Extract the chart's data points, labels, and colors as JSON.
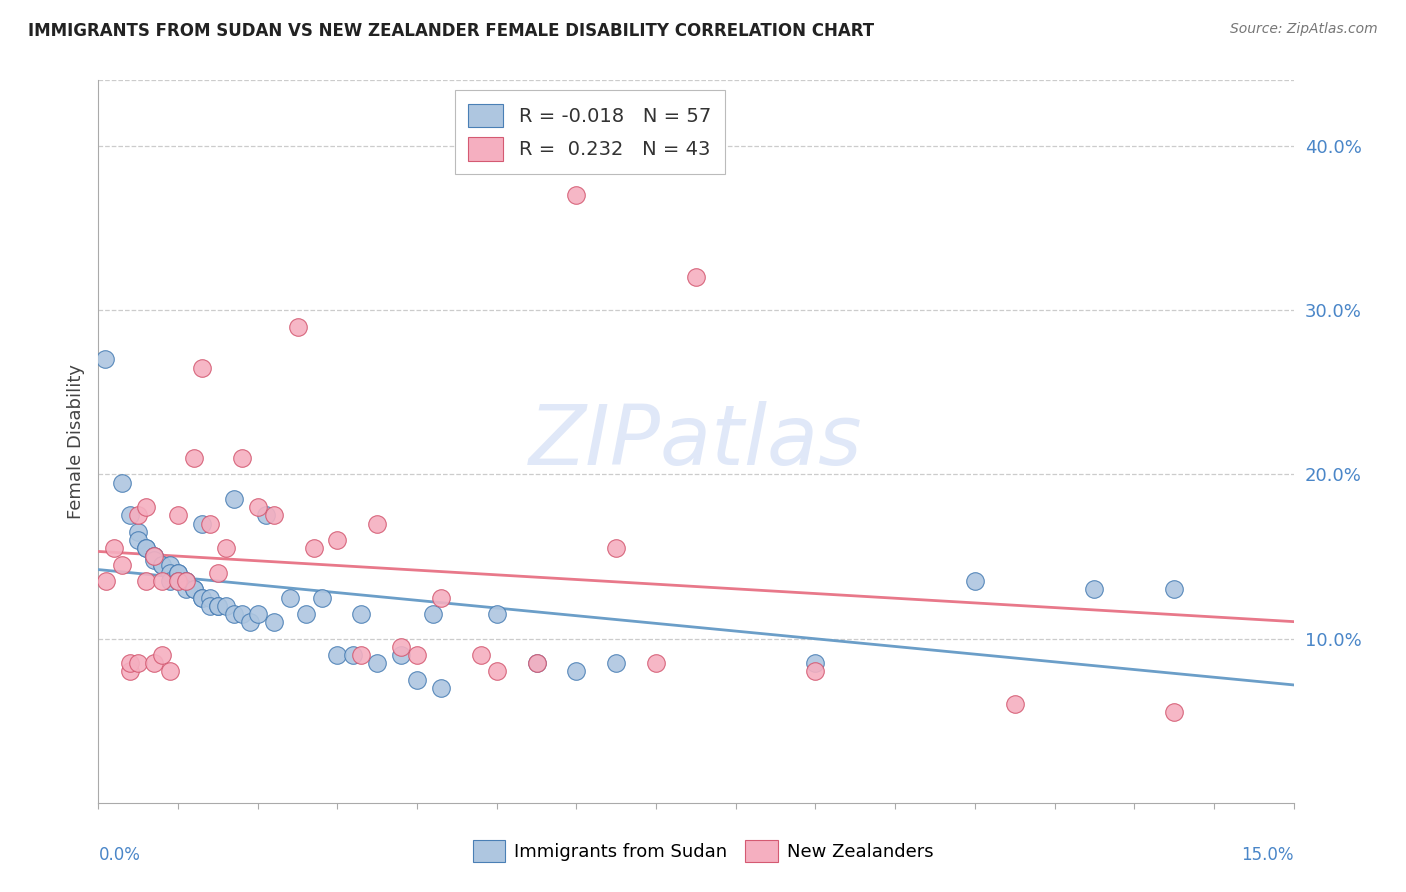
{
  "title": "IMMIGRANTS FROM SUDAN VS NEW ZEALANDER FEMALE DISABILITY CORRELATION CHART",
  "source": "Source: ZipAtlas.com",
  "ylabel": "Female Disability",
  "right_yticks": [
    "10.0%",
    "20.0%",
    "30.0%",
    "40.0%"
  ],
  "right_ytick_vals": [
    0.1,
    0.2,
    0.3,
    0.4
  ],
  "xlim": [
    0.0,
    0.15
  ],
  "ylim": [
    0.0,
    0.44
  ],
  "color_blue": "#aec6e0",
  "color_pink": "#f5afc0",
  "color_blue_line": "#6b9ec8",
  "color_pink_line": "#e8788a",
  "color_blue_dark": "#4a7fb5",
  "color_pink_dark": "#d45a72",
  "color_axis_label": "#4a86c8",
  "watermark_color": "#e0e8f8",
  "sudan_x": [
    0.0008,
    0.003,
    0.004,
    0.005,
    0.005,
    0.006,
    0.006,
    0.007,
    0.007,
    0.007,
    0.008,
    0.008,
    0.009,
    0.009,
    0.009,
    0.01,
    0.01,
    0.01,
    0.011,
    0.011,
    0.011,
    0.012,
    0.012,
    0.013,
    0.013,
    0.013,
    0.014,
    0.014,
    0.015,
    0.015,
    0.016,
    0.017,
    0.017,
    0.018,
    0.019,
    0.02,
    0.021,
    0.022,
    0.024,
    0.026,
    0.028,
    0.03,
    0.032,
    0.033,
    0.035,
    0.038,
    0.04,
    0.042,
    0.043,
    0.05,
    0.055,
    0.06,
    0.065,
    0.09,
    0.11,
    0.125,
    0.135
  ],
  "sudan_y": [
    0.27,
    0.195,
    0.175,
    0.165,
    0.16,
    0.155,
    0.155,
    0.15,
    0.15,
    0.148,
    0.145,
    0.145,
    0.145,
    0.14,
    0.135,
    0.14,
    0.14,
    0.135,
    0.135,
    0.135,
    0.13,
    0.13,
    0.13,
    0.125,
    0.125,
    0.17,
    0.125,
    0.12,
    0.12,
    0.12,
    0.12,
    0.115,
    0.185,
    0.115,
    0.11,
    0.115,
    0.175,
    0.11,
    0.125,
    0.115,
    0.125,
    0.09,
    0.09,
    0.115,
    0.085,
    0.09,
    0.075,
    0.115,
    0.07,
    0.115,
    0.085,
    0.08,
    0.085,
    0.085,
    0.135,
    0.13,
    0.13
  ],
  "nz_x": [
    0.001,
    0.002,
    0.003,
    0.004,
    0.004,
    0.005,
    0.005,
    0.006,
    0.006,
    0.007,
    0.007,
    0.008,
    0.008,
    0.009,
    0.01,
    0.01,
    0.011,
    0.012,
    0.013,
    0.014,
    0.015,
    0.016,
    0.018,
    0.02,
    0.022,
    0.025,
    0.027,
    0.03,
    0.033,
    0.035,
    0.038,
    0.04,
    0.043,
    0.048,
    0.05,
    0.055,
    0.06,
    0.065,
    0.07,
    0.075,
    0.09,
    0.115,
    0.135
  ],
  "nz_y": [
    0.135,
    0.155,
    0.145,
    0.08,
    0.085,
    0.175,
    0.085,
    0.18,
    0.135,
    0.15,
    0.085,
    0.09,
    0.135,
    0.08,
    0.175,
    0.135,
    0.135,
    0.21,
    0.265,
    0.17,
    0.14,
    0.155,
    0.21,
    0.18,
    0.175,
    0.29,
    0.155,
    0.16,
    0.09,
    0.17,
    0.095,
    0.09,
    0.125,
    0.09,
    0.08,
    0.085,
    0.37,
    0.155,
    0.085,
    0.32,
    0.08,
    0.06,
    0.055
  ]
}
